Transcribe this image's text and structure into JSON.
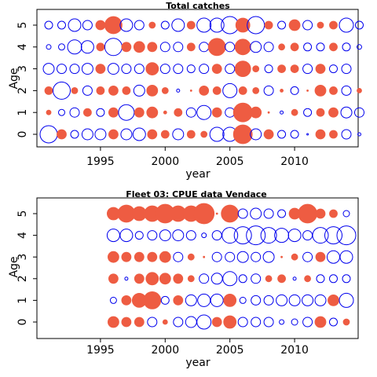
{
  "chart_data": [
    {
      "type": "bubble",
      "title": "Total catches",
      "xlabel": "year",
      "ylabel": "Age",
      "xlim": [
        1990,
        2015
      ],
      "ylim": [
        -0.5,
        5.5
      ],
      "x_ticks": [
        1995,
        2000,
        2005,
        2010
      ],
      "y_ticks": [
        0,
        1,
        2,
        3,
        4,
        5
      ],
      "positive_color": "#EE5C42",
      "negative_color": "#0000EE",
      "value_scale": "relative residual size, 0-1; positive = filled red, negative = open blue",
      "rows": [
        {
          "age": 5,
          "values": [
            -0.25,
            -0.25,
            -0.4,
            -0.3,
            0.3,
            0.55,
            -0.4,
            -0.3,
            0.2,
            -0.25,
            -0.4,
            0.25,
            -0.45,
            -0.45,
            -0.55,
            0.45,
            -0.55,
            0.25,
            -0.25,
            0.35,
            -0.3,
            0.2,
            0.25,
            -0.45,
            -0.25
          ]
        },
        {
          "age": 4,
          "values": [
            -0.15,
            -0.2,
            -0.45,
            -0.4,
            0.25,
            -0.55,
            0.3,
            0.35,
            0.3,
            -0.3,
            -0.3,
            0.25,
            -0.3,
            0.55,
            -0.3,
            0.5,
            -0.35,
            -0.3,
            0.2,
            0.25,
            -0.25,
            -0.25,
            0.25,
            -0.25,
            -0.15
          ]
        },
        {
          "age": 3,
          "values": [
            -0.35,
            -0.3,
            -0.3,
            -0.35,
            0.3,
            -0.35,
            -0.3,
            -0.3,
            0.4,
            -0.3,
            -0.3,
            -0.25,
            -0.3,
            0.3,
            -0.3,
            0.5,
            0.2,
            -0.25,
            0.25,
            0.25,
            -0.3,
            0.3,
            -0.25,
            -0.3,
            0
          ]
        },
        {
          "age": 2,
          "values": [
            0.25,
            -0.55,
            0.2,
            -0.3,
            0.25,
            0.3,
            0.25,
            -0.35,
            0.35,
            0.2,
            -0.1,
            0.05,
            0.3,
            0.25,
            -0.45,
            0.25,
            0.2,
            -0.3,
            0.1,
            -0.25,
            0.05,
            0.35,
            0.25,
            -0.3,
            0.15
          ]
        },
        {
          "age": 1,
          "values": [
            0.15,
            -0.2,
            -0.3,
            0.25,
            -0.25,
            0.3,
            -0.5,
            0.3,
            0.35,
            0.1,
            0.25,
            -0.3,
            -0.45,
            0.3,
            -0.3,
            0.6,
            0.35,
            0.05,
            -0.1,
            0.2,
            -0.25,
            0.25,
            0.3,
            -0.35,
            -0.3
          ]
        },
        {
          "age": 0,
          "values": [
            -0.55,
            0.3,
            -0.25,
            -0.35,
            -0.35,
            0.3,
            -0.35,
            -0.4,
            0.3,
            0.25,
            -0.35,
            0.25,
            0.2,
            -0.45,
            -0.45,
            0.6,
            -0.35,
            0.3,
            -0.25,
            -0.25,
            -0.05,
            0.3,
            0.25,
            -0.3,
            -0.1
          ]
        }
      ]
    },
    {
      "type": "bubble",
      "title": "Fleet 03:  CPUE data Vendace",
      "xlabel": "year",
      "ylabel": "Age",
      "xlim": [
        1990,
        2015
      ],
      "ylim": [
        -0.5,
        5.5
      ],
      "x_ticks": [
        1995,
        2000,
        2005,
        2010
      ],
      "y_ticks": [
        0,
        1,
        2,
        3,
        4,
        5
      ],
      "positive_color": "#EE5C42",
      "negative_color": "#0000EE",
      "value_scale": "relative residual size, 0-1; positive = filled red, negative = open blue",
      "rows": [
        {
          "age": 5,
          "values": [
            0,
            0,
            0,
            0,
            0,
            0.4,
            0.55,
            0.45,
            0.5,
            0.6,
            0.5,
            0.5,
            0.65,
            0.05,
            0.55,
            -0.3,
            -0.35,
            -0.3,
            -0.25,
            0.35,
            0.6,
            0.3,
            0.25,
            -0.2
          ]
        },
        {
          "age": 4,
          "values": [
            0,
            0,
            0,
            0,
            0,
            -0.4,
            -0.4,
            -0.25,
            -0.3,
            -0.35,
            -0.35,
            -0.3,
            -0.15,
            -0.3,
            -0.5,
            -0.55,
            -0.6,
            -0.5,
            -0.45,
            -0.4,
            -0.3,
            -0.5,
            -0.55,
            -0.6
          ]
        },
        {
          "age": 3,
          "values": [
            0,
            0,
            0,
            0,
            0,
            0.35,
            0.3,
            0.3,
            0.3,
            0.35,
            -0.3,
            0.2,
            0.05,
            -0.3,
            -0.3,
            -0.35,
            -0.3,
            -0.35,
            0.05,
            0.2,
            -0.3,
            0.3,
            -0.4,
            -0.4
          ]
        },
        {
          "age": 2,
          "values": [
            0,
            0,
            0,
            0,
            0,
            0.3,
            -0.1,
            0.3,
            0.4,
            0.35,
            0.3,
            0.2,
            -0.3,
            -0.35,
            -0.45,
            -0.25,
            -0.3,
            0.2,
            0.25,
            -0.1,
            0.2,
            -0.25,
            -0.25,
            -0.25
          ]
        },
        {
          "age": 1,
          "values": [
            0,
            0,
            0,
            0,
            0,
            -0.2,
            0.3,
            0.45,
            0.55,
            -0.25,
            0.3,
            -0.35,
            -0.4,
            -0.4,
            0.4,
            -0.2,
            -0.3,
            -0.3,
            -0.35,
            -0.35,
            -0.35,
            -0.35,
            0.35,
            -0.45
          ]
        },
        {
          "age": 0,
          "values": [
            0,
            0,
            0,
            0,
            0,
            0.35,
            0.3,
            0.3,
            -0.3,
            0.15,
            -0.3,
            -0.35,
            -0.45,
            0.3,
            0.4,
            -0.3,
            -0.3,
            -0.3,
            -0.15,
            -0.2,
            -0.3,
            0.35,
            -0.25,
            0.2
          ]
        }
      ]
    }
  ]
}
